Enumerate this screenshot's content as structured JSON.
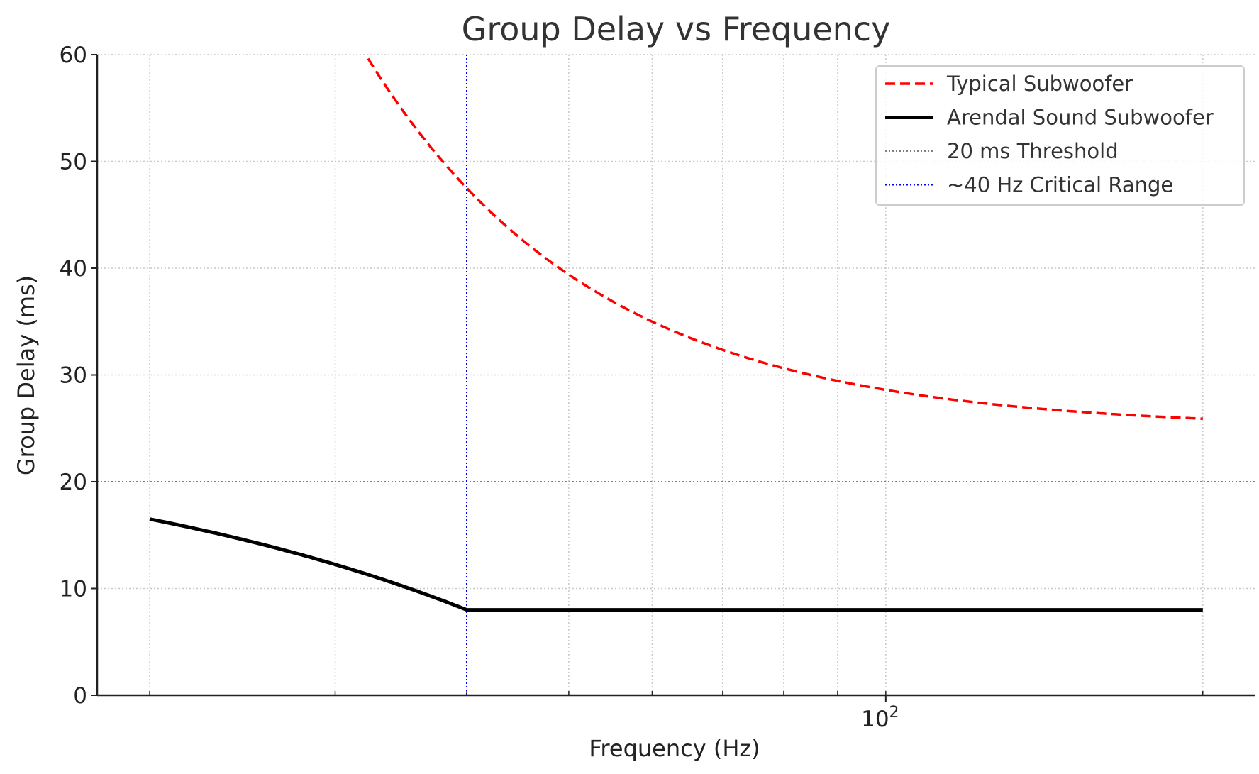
{
  "chart_data": {
    "type": "line",
    "title": "Group Delay vs Frequency",
    "xlabel": "Frequency (Hz)",
    "ylabel": "Group Delay (ms)",
    "xscale": "log",
    "xlim": [
      17.83,
      224.4
    ],
    "ylim": [
      0,
      60
    ],
    "grid": true,
    "yticks": [
      0,
      10,
      20,
      30,
      40,
      50,
      60
    ],
    "xticks_major": [
      {
        "value": 100,
        "base": "10",
        "exp": "2"
      }
    ],
    "xticks_minor": [
      20,
      30,
      40,
      50,
      60,
      70,
      80,
      90,
      200
    ],
    "legend_position": "top-right",
    "series": [
      {
        "name": "Typical Subwoofer",
        "color": "#ff0000",
        "style": "dashed",
        "x": [
          31.7,
          32,
          35,
          40,
          45,
          50,
          60,
          70,
          80,
          90,
          100,
          120,
          140,
          160,
          180,
          200
        ],
        "y": [
          60.8,
          60.16,
          54.39,
          47.5,
          42.78,
          39.4,
          35.0,
          32.35,
          30.63,
          29.44,
          28.6,
          27.5,
          26.84,
          26.41,
          26.11,
          25.9
        ]
      },
      {
        "name": "Arendal Sound Subwoofer",
        "color": "#000000",
        "style": "solid",
        "x": [
          20,
          25,
          30,
          35,
          40,
          60,
          100,
          200
        ],
        "y": [
          16.5,
          14.375,
          12.25,
          10.125,
          8,
          8,
          8,
          8
        ]
      }
    ],
    "reference_lines": [
      {
        "name": "20 ms Threshold",
        "orientation": "horizontal",
        "value": 20,
        "color": "#808080",
        "style": "dotted"
      },
      {
        "name": "~40 Hz Critical Range",
        "orientation": "vertical",
        "value": 40,
        "color": "#0000ff",
        "style": "dotted"
      }
    ]
  }
}
